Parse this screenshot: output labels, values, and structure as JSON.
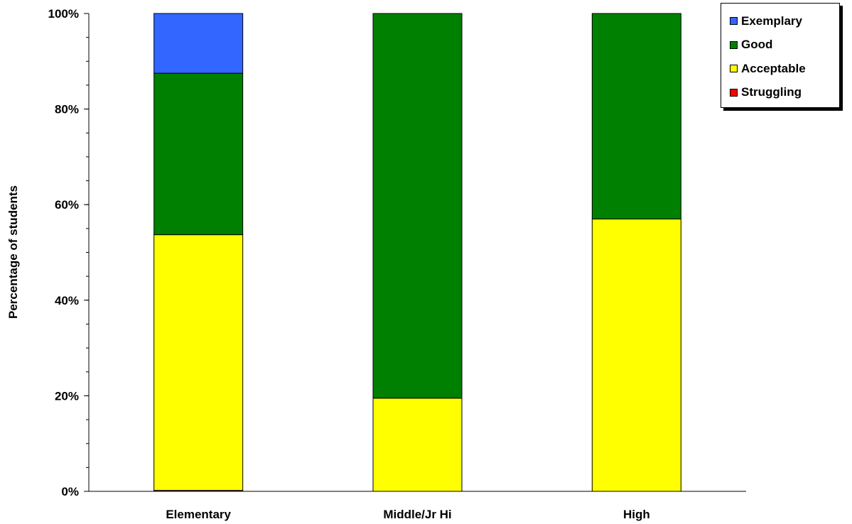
{
  "chart_data": {
    "type": "bar",
    "stacked": true,
    "title": "",
    "xlabel": "",
    "ylabel": "Percentage of students",
    "ylim": [
      0,
      100
    ],
    "y_ticks": [
      "0%",
      "20%",
      "40%",
      "60%",
      "80%",
      "100%"
    ],
    "categories": [
      "Elementary",
      "Middle/Jr Hi",
      "High"
    ],
    "series": [
      {
        "name": "Struggling",
        "color": "#ff0000",
        "values": [
          0.2,
          0,
          0
        ]
      },
      {
        "name": "Acceptable",
        "color": "#ffff00",
        "values": [
          53.5,
          19.5,
          57
        ]
      },
      {
        "name": "Good",
        "color": "#008000",
        "values": [
          33.8,
          80.5,
          43
        ]
      },
      {
        "name": "Exemplary",
        "color": "#3366ff",
        "values": [
          12.5,
          0,
          0
        ]
      }
    ],
    "legend": {
      "position": "top-right",
      "order": [
        "Exemplary",
        "Good",
        "Acceptable",
        "Struggling"
      ]
    },
    "grid": false
  }
}
